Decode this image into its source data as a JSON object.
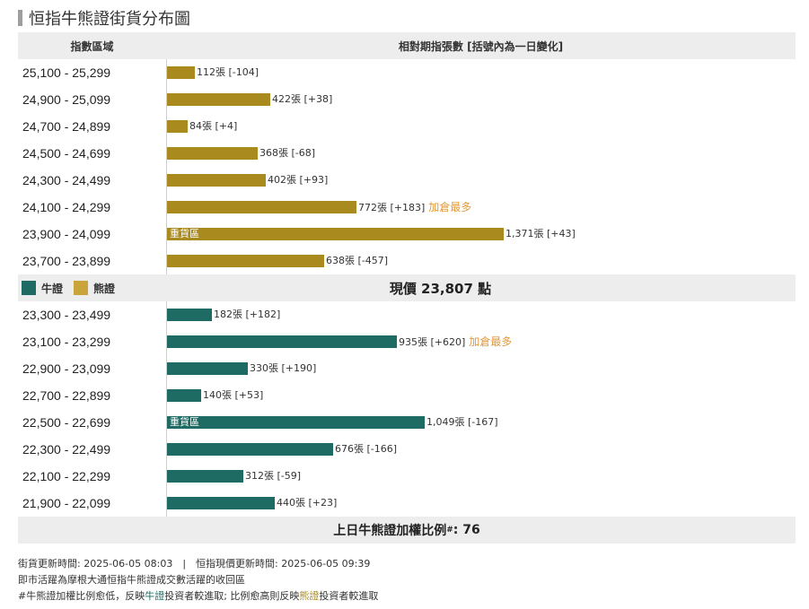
{
  "page_title": "恒指牛熊證街貨分布圖",
  "header": {
    "col_range": "指數區域",
    "col_value": "相對期指張數 [括號內為一日變化]"
  },
  "legend": {
    "bull": "牛證",
    "bear": "熊證"
  },
  "current_price_text": "現價 23,807 點",
  "ratio": {
    "label": "上日牛熊證加權比例",
    "sup": "#",
    "value": ": 76"
  },
  "footer": {
    "line1": "街貨更新時間: 2025-06-05 08:03　|　恒指現價更新時間: 2025-06-05 09:39",
    "line2": "即市活躍為摩根大通恒指牛熊證成交數活躍的收回區",
    "line3_a": "#牛熊證加權比例愈低，反映",
    "line3_bull": "牛證",
    "line3_b": "投資者較進取; 比例愈高則反映",
    "line3_bear": "熊證",
    "line3_c": "投資者較進取"
  },
  "colors": {
    "bull": "#1e6b63",
    "bear": "#a88a1f",
    "note": "#e29a3a"
  },
  "chart_data": {
    "type": "bar",
    "orientation": "horizontal",
    "title": "恒指牛熊證街貨分布圖",
    "value_unit": "張",
    "scale_max": 1371,
    "bear": [
      {
        "range": "25,100 - 25,299",
        "value": 112,
        "change": "-104",
        "label": "112張 [-104]"
      },
      {
        "range": "24,900 - 25,099",
        "value": 422,
        "change": "+38",
        "label": "422張 [+38]"
      },
      {
        "range": "24,700 - 24,899",
        "value": 84,
        "change": "+4",
        "label": "84張 [+4]"
      },
      {
        "range": "24,500 - 24,699",
        "value": 368,
        "change": "-68",
        "label": "368張 [-68]"
      },
      {
        "range": "24,300 - 24,499",
        "value": 402,
        "change": "+93",
        "label": "402張 [+93]"
      },
      {
        "range": "24,100 - 24,299",
        "value": 772,
        "change": "+183",
        "label": "772張 [+183]",
        "note": "加倉最多"
      },
      {
        "range": "23,900 - 24,099",
        "value": 1371,
        "change": "+43",
        "label": "1,371張 [+43]",
        "inlabel": "重貨區"
      },
      {
        "range": "23,700 - 23,899",
        "value": 638,
        "change": "-457",
        "label": "638張 [-457]"
      }
    ],
    "bull": [
      {
        "range": "23,300 - 23,499",
        "value": 182,
        "change": "+182",
        "label": "182張 [+182]"
      },
      {
        "range": "23,100 - 23,299",
        "value": 935,
        "change": "+620",
        "label": "935張 [+620]",
        "note": "加倉最多"
      },
      {
        "range": "22,900 - 23,099",
        "value": 330,
        "change": "+190",
        "label": "330張 [+190]"
      },
      {
        "range": "22,700 - 22,899",
        "value": 140,
        "change": "+53",
        "label": "140張 [+53]"
      },
      {
        "range": "22,500 - 22,699",
        "value": 1049,
        "change": "-167",
        "label": "1,049張 [-167]",
        "inlabel": "重貨區"
      },
      {
        "range": "22,300 - 22,499",
        "value": 676,
        "change": "-166",
        "label": "676張 [-166]"
      },
      {
        "range": "22,100 - 22,299",
        "value": 312,
        "change": "-59",
        "label": "312張 [-59]"
      },
      {
        "range": "21,900 - 22,099",
        "value": 440,
        "change": "+23",
        "label": "440張 [+23]"
      }
    ]
  }
}
